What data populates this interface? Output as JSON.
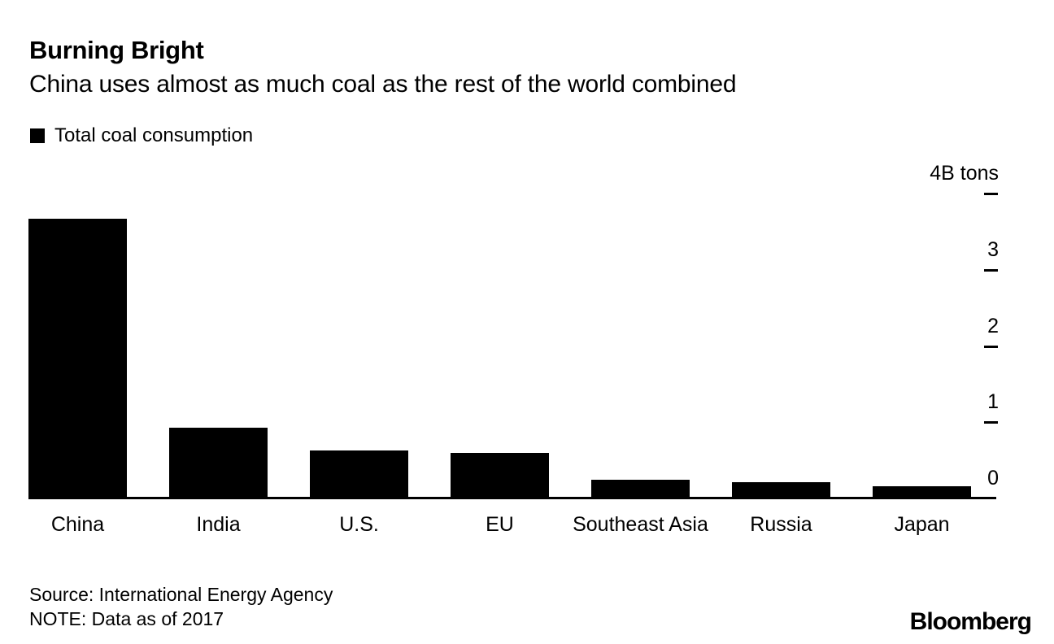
{
  "header": {
    "title": "Burning Bright",
    "subtitle": "China uses almost as much coal as the rest of the world combined"
  },
  "legend": {
    "items": [
      {
        "label": "Total coal consumption",
        "swatch_color": "#000000"
      }
    ]
  },
  "chart_data": {
    "type": "bar",
    "categories": [
      "China",
      "India",
      "U.S.",
      "EU",
      "Southeast Asia",
      "Russia",
      "Japan"
    ],
    "values": [
      3.67,
      0.93,
      0.63,
      0.6,
      0.25,
      0.21,
      0.16
    ],
    "series_name": "Total coal consumption",
    "title": "Burning Bright",
    "subtitle": "China uses almost as much coal as the rest of the world combined",
    "unit": "B tons",
    "ylim": [
      0,
      4
    ],
    "yticks": [
      4,
      3,
      2,
      1,
      0
    ],
    "ytick_labels": [
      "4B tons",
      "3",
      "2",
      "1",
      "0"
    ],
    "axis_side": "right",
    "grid": false,
    "bar_color": "#000000",
    "background_color": "#ffffff",
    "text_color": "#000000"
  },
  "footer": {
    "source": "Source: International Energy Agency",
    "note": "NOTE: Data as of 2017",
    "brand": "Bloomberg"
  }
}
